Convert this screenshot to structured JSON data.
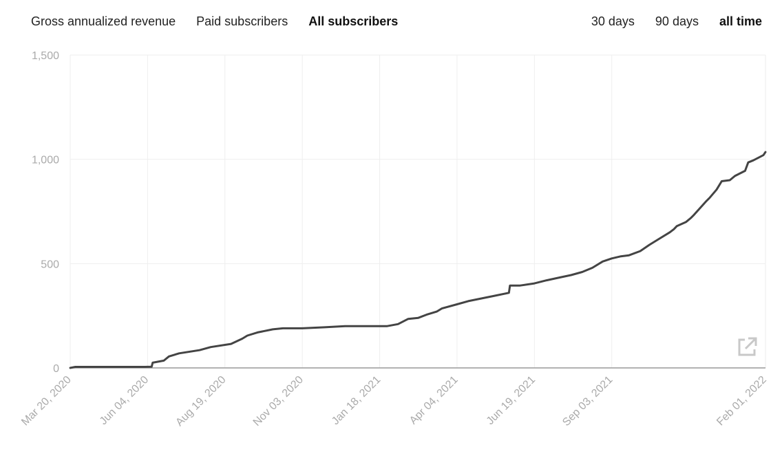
{
  "tabs": [
    {
      "label": "Gross annualized revenue",
      "active": false
    },
    {
      "label": "Paid subscribers",
      "active": false
    },
    {
      "label": "All subscribers",
      "active": true
    }
  ],
  "ranges": [
    {
      "label": "30 days",
      "active": false
    },
    {
      "label": "90 days",
      "active": false
    },
    {
      "label": "all time",
      "active": true
    }
  ],
  "icons": {
    "open_external": "external-link-icon"
  },
  "colors": {
    "line": "#444444",
    "grid": "#eeeeee",
    "axis_text": "#aaaaaa"
  },
  "chart_data": {
    "type": "line",
    "title": "",
    "xlabel": "",
    "ylabel": "",
    "ylim": [
      0,
      1500
    ],
    "yticks": [
      0,
      500,
      1000,
      1500
    ],
    "ytick_labels": [
      "0",
      "500",
      "1,000",
      "1,500"
    ],
    "xlim": [
      "2020-03-20",
      "2022-02-01"
    ],
    "xticks": [
      "2020-03-20",
      "2020-06-04",
      "2020-08-19",
      "2020-11-03",
      "2021-01-18",
      "2021-04-04",
      "2021-06-19",
      "2021-09-03",
      "2022-02-01"
    ],
    "xtick_labels": [
      "Mar 20, 2020",
      "Jun 04, 2020",
      "Aug 19, 2020",
      "Nov 03, 2020",
      "Jan 18, 2021",
      "Apr 04, 2021",
      "Jun 19, 2021",
      "Sep 03, 2021",
      "Feb 01, 2022"
    ],
    "grid": true,
    "legend": "none",
    "series": [
      {
        "x": [
          "2020-03-20",
          "2020-03-25",
          "2020-04-15",
          "2020-05-10",
          "2020-06-01",
          "2020-06-08",
          "2020-06-09",
          "2020-06-20",
          "2020-06-25",
          "2020-07-05",
          "2020-07-25",
          "2020-08-05",
          "2020-08-25",
          "2020-09-05",
          "2020-09-10",
          "2020-09-20",
          "2020-10-05",
          "2020-10-15",
          "2020-11-03",
          "2020-11-25",
          "2020-12-15",
          "2020-12-30",
          "2021-01-10",
          "2021-01-25",
          "2021-02-05",
          "2021-02-15",
          "2021-02-25",
          "2021-03-05",
          "2021-03-15",
          "2021-03-20",
          "2021-04-04",
          "2021-04-15",
          "2021-04-25",
          "2021-05-10",
          "2021-05-25",
          "2021-05-26",
          "2021-06-05",
          "2021-06-19",
          "2021-07-01",
          "2021-07-15",
          "2021-07-25",
          "2021-08-05",
          "2021-08-15",
          "2021-08-25",
          "2021-09-03",
          "2021-09-12",
          "2021-09-20",
          "2021-10-01",
          "2021-10-10",
          "2021-10-20",
          "2021-10-30",
          "2021-11-03",
          "2021-11-06",
          "2021-11-15",
          "2021-11-20",
          "2021-11-22",
          "2021-12-05",
          "2021-12-08",
          "2021-12-15",
          "2021-12-20",
          "2021-12-28",
          "2022-01-02",
          "2022-01-12",
          "2022-01-15",
          "2022-01-20",
          "2022-01-30",
          "2022-02-01"
        ],
        "y": [
          0,
          5,
          5,
          5,
          5,
          6,
          25,
          35,
          55,
          70,
          85,
          100,
          115,
          140,
          155,
          170,
          185,
          190,
          190,
          195,
          200,
          200,
          200,
          200,
          210,
          235,
          240,
          255,
          270,
          285,
          305,
          320,
          330,
          345,
          360,
          395,
          395,
          405,
          420,
          435,
          445,
          460,
          480,
          510,
          525,
          535,
          540,
          560,
          590,
          620,
          650,
          665,
          680,
          700,
          720,
          730,
          800,
          815,
          855,
          895,
          900,
          920,
          945,
          985,
          995,
          1020,
          1035
        ]
      }
    ]
  }
}
